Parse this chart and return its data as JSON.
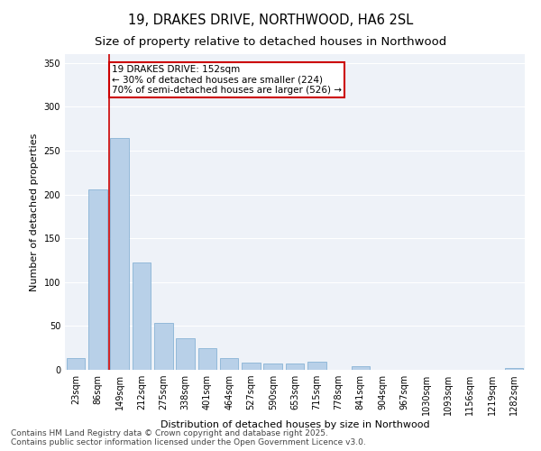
{
  "title_line1": "19, DRAKES DRIVE, NORTHWOOD, HA6 2SL",
  "title_line2": "Size of property relative to detached houses in Northwood",
  "xlabel": "Distribution of detached houses by size in Northwood",
  "ylabel": "Number of detached properties",
  "categories": [
    "23sqm",
    "86sqm",
    "149sqm",
    "212sqm",
    "275sqm",
    "338sqm",
    "401sqm",
    "464sqm",
    "527sqm",
    "590sqm",
    "653sqm",
    "715sqm",
    "778sqm",
    "841sqm",
    "904sqm",
    "967sqm",
    "1030sqm",
    "1093sqm",
    "1156sqm",
    "1219sqm",
    "1282sqm"
  ],
  "values": [
    13,
    206,
    264,
    122,
    54,
    36,
    25,
    13,
    8,
    7,
    7,
    9,
    0,
    4,
    0,
    0,
    0,
    0,
    0,
    0,
    2
  ],
  "bar_color": "#b8d0e8",
  "bar_edge_color": "#7aaad0",
  "background_color": "#eef2f8",
  "grid_color": "#ffffff",
  "vline_index": 2,
  "vline_color": "#cc0000",
  "annotation_text": "19 DRAKES DRIVE: 152sqm\n← 30% of detached houses are smaller (224)\n70% of semi-detached houses are larger (526) →",
  "annotation_edge_color": "#cc0000",
  "ylim": [
    0,
    360
  ],
  "yticks": [
    0,
    50,
    100,
    150,
    200,
    250,
    300,
    350
  ],
  "footnote": "Contains HM Land Registry data © Crown copyright and database right 2025.\nContains public sector information licensed under the Open Government Licence v3.0.",
  "title_fontsize": 10.5,
  "subtitle_fontsize": 9.5,
  "axis_label_fontsize": 8,
  "tick_fontsize": 7,
  "annotation_fontsize": 7.5,
  "footnote_fontsize": 6.5
}
